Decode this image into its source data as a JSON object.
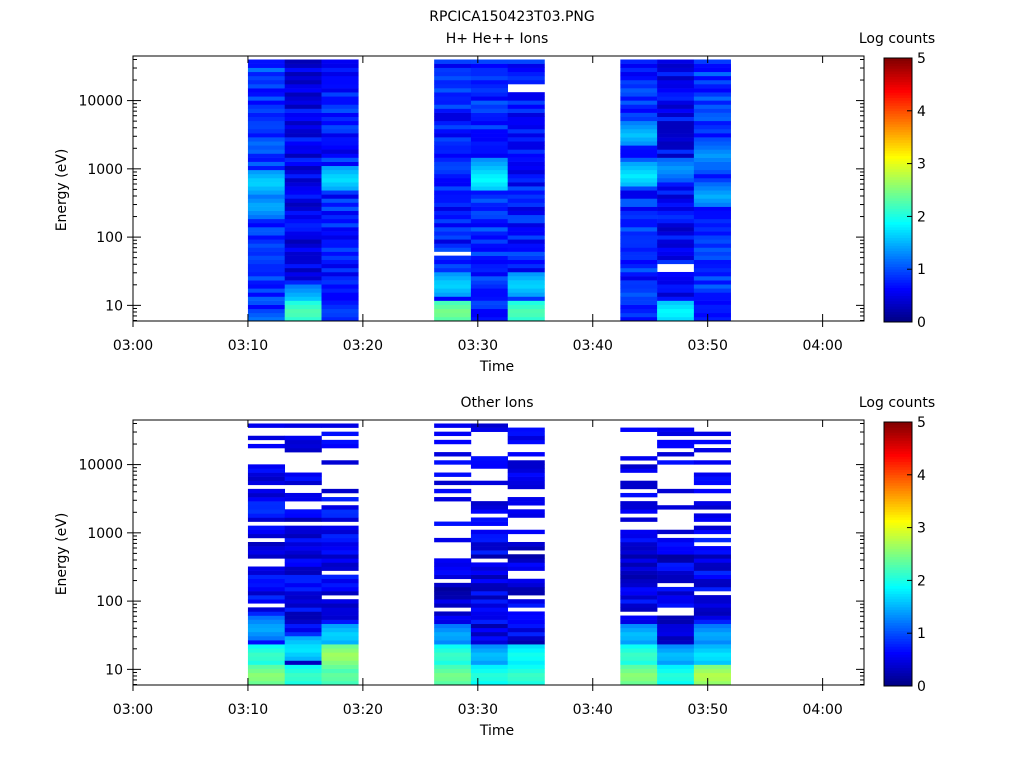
{
  "figure_title": "RPCICA150423T03.PNG",
  "chart_data": [
    {
      "type": "heatmap",
      "title": "H+ He++ Ions",
      "xlabel": "Time",
      "ylabel": "Energy (eV)",
      "x_ticks": [
        "03:00",
        "03:10",
        "03:20",
        "03:30",
        "03:40",
        "03:50",
        "04:00"
      ],
      "y_scale": "log",
      "y_ticks": [
        {
          "value": 10,
          "label": "10"
        },
        {
          "value": 100,
          "label": "100"
        },
        {
          "value": 1000,
          "label": "1000"
        },
        {
          "value": 10000,
          "label": "10000"
        }
      ],
      "colorbar": {
        "label": "Log counts",
        "min": 0,
        "max": 5,
        "ticks": [
          "0",
          "1",
          "2",
          "3",
          "4",
          "5"
        ],
        "colormap": "jet"
      },
      "columns": [
        {
          "start": "03:10",
          "end": "03:13.2",
          "seed": 11,
          "base": 0.9,
          "highs": [
            {
              "log_e": 0.8,
              "v": 1.2
            },
            {
              "log_e": 2.8,
              "v": 1.7
            },
            {
              "log_e": 2.45,
              "v": 1.5
            }
          ],
          "gaps": []
        },
        {
          "start": "03:13.2",
          "end": "03:16.4",
          "seed": 23,
          "base": 0.55,
          "highs": [
            {
              "log_e": 0.9,
              "v": 2.3
            },
            {
              "log_e": 1.1,
              "v": 1.6
            }
          ],
          "gaps": []
        },
        {
          "start": "03:16.4",
          "end": "03:19.6",
          "seed": 37,
          "base": 0.75,
          "highs": [
            {
              "log_e": 2.85,
              "v": 1.75
            },
            {
              "log_e": 0.9,
              "v": 1.0
            }
          ],
          "gaps": []
        },
        {
          "start": "03:26.2",
          "end": "03:29.4",
          "seed": 41,
          "base": 0.75,
          "highs": [
            {
              "log_e": 0.9,
              "v": 2.5
            },
            {
              "log_e": 1.3,
              "v": 1.7
            }
          ],
          "gaps": [
            {
              "log_e": 1.75
            }
          ]
        },
        {
          "start": "03:29.4",
          "end": "03:32.6",
          "seed": 53,
          "base": 0.85,
          "highs": [
            {
              "log_e": 2.85,
              "v": 1.9
            },
            {
              "log_e": 3.0,
              "v": 1.6
            }
          ],
          "gaps": []
        },
        {
          "start": "03:32.6",
          "end": "03:35.8",
          "seed": 67,
          "base": 0.75,
          "highs": [
            {
              "log_e": 0.9,
              "v": 2.3
            },
            {
              "log_e": 1.3,
              "v": 1.7
            }
          ],
          "gaps": [
            {
              "log_e": 4.15
            },
            {
              "log_e": 4.2
            }
          ]
        },
        {
          "start": "03:42.4",
          "end": "03:45.6",
          "seed": 71,
          "base": 0.8,
          "highs": [
            {
              "log_e": 2.9,
              "v": 1.8
            },
            {
              "log_e": 3.5,
              "v": 1.6
            }
          ],
          "gaps": []
        },
        {
          "start": "03:45.6",
          "end": "03:48.8",
          "seed": 83,
          "base": 0.6,
          "highs": [
            {
              "log_e": 0.9,
              "v": 1.9
            },
            {
              "log_e": 3.0,
              "v": 1.4
            }
          ],
          "gaps": [
            {
              "log_e": 1.55
            }
          ]
        },
        {
          "start": "03:48.8",
          "end": "03:52.0",
          "seed": 97,
          "base": 0.9,
          "highs": [
            {
              "log_e": 2.6,
              "v": 1.5
            },
            {
              "log_e": 3.2,
              "v": 1.4
            }
          ],
          "gaps": []
        }
      ]
    },
    {
      "type": "heatmap",
      "title": "Other Ions",
      "xlabel": "Time",
      "ylabel": "Energy (eV)",
      "x_ticks": [
        "03:00",
        "03:10",
        "03:20",
        "03:30",
        "03:40",
        "03:50",
        "04:00"
      ],
      "y_scale": "log",
      "y_ticks": [
        {
          "value": 10,
          "label": "10"
        },
        {
          "value": 100,
          "label": "100"
        },
        {
          "value": 1000,
          "label": "1000"
        },
        {
          "value": 10000,
          "label": "10000"
        }
      ],
      "colorbar": {
        "label": "Log counts",
        "min": 0,
        "max": 5,
        "ticks": [
          "0",
          "1",
          "2",
          "3",
          "4",
          "5"
        ],
        "colormap": "jet"
      },
      "columns": [
        {
          "start": "03:10",
          "end": "03:13.2",
          "seed": 101,
          "base": 0.6,
          "highs": [
            {
              "log_e": 0.9,
              "v": 2.6
            },
            {
              "log_e": 1.2,
              "v": 2.2
            },
            {
              "log_e": 1.6,
              "v": 1.5
            }
          ],
          "sparse_above": 3.6
        },
        {
          "start": "03:13.2",
          "end": "03:16.4",
          "seed": 113,
          "base": 0.55,
          "highs": [
            {
              "log_e": 0.9,
              "v": 2.2
            },
            {
              "log_e": 1.3,
              "v": 1.8
            }
          ],
          "sparse_above": 3.3
        },
        {
          "start": "03:16.4",
          "end": "03:19.6",
          "seed": 127,
          "base": 0.6,
          "highs": [
            {
              "log_e": 0.9,
              "v": 2.4
            },
            {
              "log_e": 1.2,
              "v": 2.7
            },
            {
              "log_e": 1.5,
              "v": 1.7
            }
          ],
          "sparse_above": 3.6
        },
        {
          "start": "03:26.2",
          "end": "03:29.4",
          "seed": 131,
          "base": 0.45,
          "highs": [
            {
              "log_e": 0.9,
              "v": 2.5
            },
            {
              "log_e": 1.2,
              "v": 2.2
            },
            {
              "log_e": 1.5,
              "v": 1.5
            }
          ],
          "sparse_above": 2.6
        },
        {
          "start": "03:29.4",
          "end": "03:32.6",
          "seed": 149,
          "base": 0.5,
          "highs": [
            {
              "log_e": 0.9,
              "v": 2.1
            },
            {
              "log_e": 1.2,
              "v": 1.6
            }
          ],
          "sparse_above": 3.0
        },
        {
          "start": "03:32.6",
          "end": "03:35.8",
          "seed": 157,
          "base": 0.5,
          "highs": [
            {
              "log_e": 0.9,
              "v": 2.2
            },
            {
              "log_e": 1.2,
              "v": 2.0
            }
          ],
          "sparse_above": 2.8
        },
        {
          "start": "03:42.4",
          "end": "03:45.6",
          "seed": 163,
          "base": 0.5,
          "highs": [
            {
              "log_e": 0.9,
              "v": 2.6
            },
            {
              "log_e": 1.2,
              "v": 2.2
            },
            {
              "log_e": 1.5,
              "v": 1.6
            }
          ],
          "sparse_above": 2.9
        },
        {
          "start": "03:45.6",
          "end": "03:48.8",
          "seed": 173,
          "base": 0.45,
          "highs": [
            {
              "log_e": 0.9,
              "v": 2.1
            },
            {
              "log_e": 1.2,
              "v": 1.6
            }
          ],
          "sparse_above": 2.9
        },
        {
          "start": "03:48.8",
          "end": "03:52.0",
          "seed": 181,
          "base": 0.55,
          "highs": [
            {
              "log_e": 0.9,
              "v": 2.8
            },
            {
              "log_e": 1.2,
              "v": 1.8
            },
            {
              "log_e": 1.5,
              "v": 1.5
            }
          ],
          "sparse_above": 3.3
        }
      ]
    }
  ]
}
